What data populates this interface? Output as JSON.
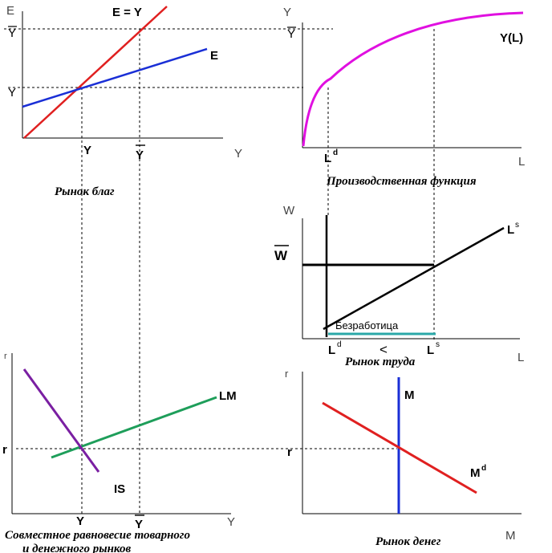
{
  "goods_market": {
    "caption": "Рынок благ",
    "y_axis_label": "E",
    "x_axis_label": "Y",
    "ybar_label": "Y",
    "y_label": "Y",
    "x_y_label": "Y",
    "x_ybar_label": "Y",
    "line_45_label": "E = Y",
    "expenditure_label": "E",
    "colors": {
      "line_45": "#e02020",
      "expenditure": "#1a2fd6"
    }
  },
  "production_function": {
    "caption": "Производственная функция",
    "y_axis_label": "Y",
    "ybar_label": "Y",
    "curve_label": "Y(L)",
    "x_axis_label": "L",
    "ld_label": "L",
    "ld_sup": "d",
    "colors": {
      "curve": "#e010e0"
    }
  },
  "labor_market": {
    "caption": "Рынок труда",
    "y_axis_label": "W",
    "wbar_label": "W",
    "ls_label": "L",
    "ls_sup": "s",
    "x_axis_label": "L",
    "ld_label": "L",
    "ld_sup": "d",
    "less_than": "<",
    "ls2_label": "L",
    "ls2_sup": "s",
    "unemployment_label": "Безработица",
    "colors": {
      "unemployment": "#2aa8a8"
    }
  },
  "is_lm": {
    "caption_line1": "Совместное равновесие товарного",
    "caption_line2": "и денежного рынков",
    "y_axis_label": "r",
    "r_label": "r",
    "lm_label": "LM",
    "is_label": "IS",
    "x_y_label": "Y",
    "x_ybar_label": "Y",
    "x_axis_label": "Y",
    "colors": {
      "lm": "#1e9e5a",
      "is": "#7a1fa2"
    }
  },
  "money_market": {
    "caption": "Рынок денег",
    "y_axis_label": "r",
    "r_label": "r",
    "m_label": "M",
    "md_label": "M",
    "md_sup": "d",
    "x_axis_label": "M",
    "colors": {
      "supply": "#1a2fd6",
      "demand": "#e02020"
    }
  }
}
